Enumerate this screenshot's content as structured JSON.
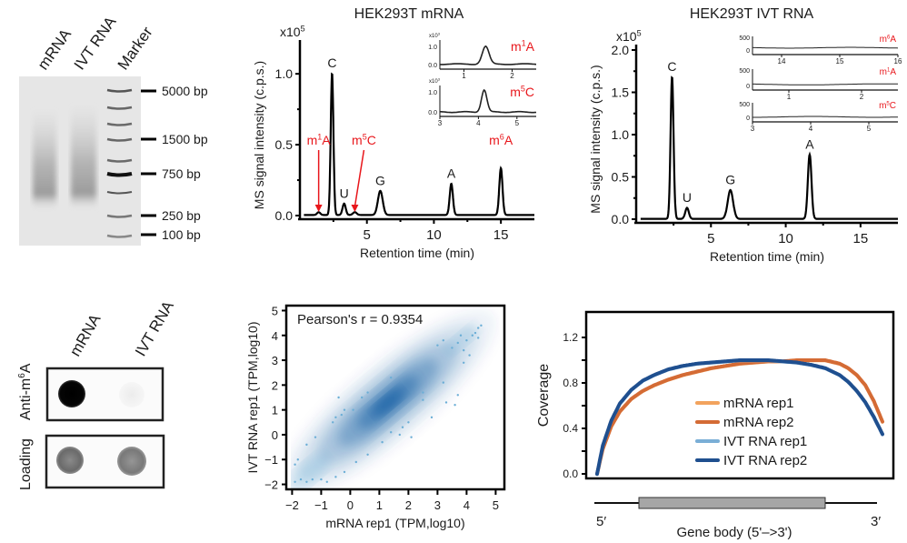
{
  "gel": {
    "lanes": [
      "mRNA",
      "IVT RNA",
      "Marker"
    ],
    "markers": [
      "5000 bp",
      "1500 bp",
      "750 bp",
      "250 bp",
      "100 bp"
    ]
  },
  "dot_blot": {
    "columns": [
      "mRNA",
      "IVT RNA"
    ],
    "rows": [
      {
        "label_prefix": "Anti-m",
        "label_sup": "6",
        "label_suffix": "A",
        "intensities": [
          1.0,
          0.05
        ]
      },
      {
        "label": "Loading",
        "intensities": [
          0.7,
          0.65
        ]
      }
    ]
  },
  "chart_data": [
    {
      "type": "line",
      "title": "HEK293T mRNA",
      "xlabel": "Retention time (min)",
      "ylabel": "MS signal intensity (c.p.s.)",
      "y_multiplier": "x10",
      "y_multiplier_exp": "5",
      "xlim": [
        0,
        17.5
      ],
      "ylim": [
        0,
        1.2
      ],
      "xticks": [
        5,
        10,
        15
      ],
      "yticks": [
        "0.0",
        "0.5",
        "1.0"
      ],
      "yticks_values": [
        0,
        0.5,
        1.0
      ],
      "peaks": [
        {
          "label": "m",
          "sup": "1",
          "suffix": "A",
          "modified": true,
          "rt": 1.4,
          "height": 0.02,
          "width": 0.12
        },
        {
          "label": "C",
          "modified": false,
          "rt": 2.4,
          "height": 1.0,
          "width": 0.1
        },
        {
          "label": "U",
          "modified": false,
          "rt": 3.3,
          "height": 0.08,
          "width": 0.12
        },
        {
          "label": "m",
          "sup": "5",
          "suffix": "C",
          "modified": true,
          "rt": 4.1,
          "height": 0.02,
          "width": 0.14
        },
        {
          "label": "G",
          "modified": false,
          "rt": 6.0,
          "height": 0.17,
          "width": 0.18
        },
        {
          "label": "A",
          "modified": false,
          "rt": 11.3,
          "height": 0.22,
          "width": 0.12
        },
        {
          "label": "m",
          "sup": "6",
          "suffix": "A",
          "modified": true,
          "rt": 15.0,
          "height": 0.33,
          "width": 0.12
        }
      ],
      "insets": [
        {
          "name": "m1A",
          "label": "m",
          "sup": "1",
          "suffix": "A",
          "xlim": [
            0.5,
            2.5
          ],
          "xticks": [
            1,
            2
          ],
          "yticks": [
            "0.0",
            "1.0"
          ],
          "y_multiplier": "x10",
          "y_multiplier_exp": "3",
          "peak_rt": 1.45,
          "peak_height": 1.3,
          "baseline": 0.1
        },
        {
          "name": "m5C",
          "label": "m",
          "sup": "5",
          "suffix": "C",
          "xlim": [
            3,
            5.5
          ],
          "xticks": [
            3,
            4,
            5
          ],
          "yticks": [
            "0.0",
            "1.0"
          ],
          "y_multiplier": "x10",
          "y_multiplier_exp": "3",
          "peak_rt": 4.15,
          "peak_height": 1.5,
          "baseline": 0.05
        }
      ]
    },
    {
      "type": "line",
      "title": "HEK293T IVT RNA",
      "xlabel": "Retention time (min)",
      "ylabel": "MS signal intensity (c.p.s.)",
      "y_multiplier": "x10",
      "y_multiplier_exp": "5",
      "xlim": [
        0,
        17.5
      ],
      "ylim": [
        0,
        2.0
      ],
      "xticks": [
        5,
        10,
        15
      ],
      "yticks": [
        "0.0",
        "0.5",
        "1.0",
        "1.5",
        "2.0"
      ],
      "yticks_values": [
        0,
        0.5,
        1.0,
        1.5,
        2.0
      ],
      "peaks": [
        {
          "label": "C",
          "modified": false,
          "rt": 2.4,
          "height": 1.68,
          "width": 0.1
        },
        {
          "label": "U",
          "modified": false,
          "rt": 3.4,
          "height": 0.13,
          "width": 0.12
        },
        {
          "label": "G",
          "modified": false,
          "rt": 6.3,
          "height": 0.34,
          "width": 0.18
        },
        {
          "label": "A",
          "modified": false,
          "rt": 11.6,
          "height": 0.76,
          "width": 0.12
        }
      ],
      "insets": [
        {
          "name": "m6A",
          "label": "m",
          "sup": "6",
          "suffix": "A",
          "xlim": [
            13.5,
            16
          ],
          "xticks": [
            14,
            15,
            16
          ],
          "yticks": [
            "0",
            "500"
          ],
          "baseline": 150
        },
        {
          "name": "m1A",
          "label": "m",
          "sup": "1",
          "suffix": "A",
          "xlim": [
            0.5,
            2.5
          ],
          "xticks": [
            1,
            2
          ],
          "yticks": [
            "0",
            "500"
          ],
          "baseline": 80
        },
        {
          "name": "m5C",
          "label": "m",
          "sup": "5",
          "suffix": "C",
          "xlim": [
            3,
            5.5
          ],
          "xticks": [
            3,
            4,
            5
          ],
          "yticks": [
            "0",
            "500"
          ],
          "baseline": 60
        }
      ]
    },
    {
      "type": "scatter",
      "annotation": "Pearson's r  = 0.9354",
      "xlabel": "mRNA rep1 (TPM,log10)",
      "ylabel": "IVT RNA rep1 (TPM,log10)",
      "xlim": [
        -2.2,
        5.3
      ],
      "ylim": [
        -2.2,
        5.2
      ],
      "xticks": [
        "−2",
        "−1",
        "0",
        "1",
        "2",
        "3",
        "4",
        "5"
      ],
      "xticks_values": [
        -2,
        -1,
        0,
        1,
        2,
        3,
        4,
        5
      ],
      "yticks": [
        "−2",
        "−1",
        "0",
        "1",
        "2",
        "3",
        "4",
        "5"
      ],
      "yticks_values": [
        -2,
        -1,
        0,
        1,
        2,
        3,
        4,
        5
      ],
      "density_center": [
        1.3,
        1.3
      ],
      "outliers": [
        [
          -1.9,
          -1.9
        ],
        [
          -1.7,
          -1.8
        ],
        [
          -1.5,
          -1.9
        ],
        [
          -1.3,
          -1.8
        ],
        [
          -1.0,
          -1.8
        ],
        [
          -0.8,
          -1.9
        ],
        [
          -1.9,
          -1.2
        ],
        [
          -1.8,
          -1.0
        ],
        [
          -1.5,
          -0.4
        ],
        [
          -1.2,
          -0.1
        ],
        [
          -0.5,
          0.7
        ],
        [
          -0.3,
          0.8
        ],
        [
          -0.2,
          1.0
        ],
        [
          -0.6,
          0.5
        ],
        [
          -0.4,
          1.5
        ],
        [
          0.1,
          1.0
        ],
        [
          0.4,
          1.5
        ],
        [
          0.6,
          1.7
        ],
        [
          1.4,
          2.3
        ],
        [
          2.5,
          1.7
        ],
        [
          2.5,
          1.4
        ],
        [
          3.2,
          2.1
        ],
        [
          3.3,
          1.3
        ],
        [
          3.6,
          1.2
        ],
        [
          3.7,
          1.6
        ],
        [
          2.8,
          0.7
        ],
        [
          2.0,
          0.5
        ],
        [
          1.8,
          0.3
        ],
        [
          1.4,
          0.1
        ],
        [
          1.1,
          -0.3
        ],
        [
          0.6,
          -0.8
        ],
        [
          0.2,
          -1.1
        ],
        [
          -0.2,
          -1.5
        ],
        [
          -0.5,
          -1.7
        ],
        [
          2.1,
          -0.1
        ],
        [
          1.7,
          0.0
        ],
        [
          3.0,
          3.6
        ],
        [
          3.2,
          3.8
        ],
        [
          3.5,
          3.5
        ],
        [
          3.7,
          3.7
        ],
        [
          3.9,
          3.4
        ],
        [
          4.0,
          3.8
        ],
        [
          4.1,
          3.2
        ],
        [
          3.9,
          2.9
        ],
        [
          4.2,
          4.0
        ],
        [
          4.3,
          4.1
        ],
        [
          4.4,
          4.3
        ],
        [
          4.5,
          4.4
        ],
        [
          4.4,
          3.9
        ],
        [
          3.8,
          4.0
        ]
      ]
    },
    {
      "type": "line",
      "xlabel": "Gene body (5'–>3')",
      "ylabel": "Coverage",
      "x_start_label": "5′",
      "x_end_label": "3′",
      "xlim": [
        0,
        100
      ],
      "ylim": [
        0,
        1.25
      ],
      "yticks": [
        "0.0",
        "0.4",
        "0.8",
        "1.2"
      ],
      "yticks_values": [
        0,
        0.4,
        0.8,
        1.2
      ],
      "x": [
        0,
        2,
        5,
        8,
        12,
        16,
        20,
        25,
        30,
        35,
        40,
        45,
        50,
        55,
        60,
        65,
        70,
        75,
        80,
        85,
        88,
        91,
        94,
        97,
        100
      ],
      "series": [
        {
          "name": "mRNA rep1",
          "color": "#f2a35e",
          "values": [
            0.0,
            0.22,
            0.42,
            0.55,
            0.66,
            0.73,
            0.78,
            0.83,
            0.87,
            0.9,
            0.93,
            0.95,
            0.97,
            0.98,
            0.99,
            0.99,
            1.0,
            1.0,
            1.0,
            0.97,
            0.93,
            0.87,
            0.78,
            0.64,
            0.46
          ]
        },
        {
          "name": "mRNA rep2",
          "color": "#d46b35",
          "values": [
            0.0,
            0.22,
            0.42,
            0.55,
            0.66,
            0.73,
            0.78,
            0.83,
            0.87,
            0.9,
            0.93,
            0.95,
            0.97,
            0.98,
            0.99,
            0.99,
            1.0,
            1.0,
            1.0,
            0.97,
            0.93,
            0.87,
            0.78,
            0.64,
            0.46
          ]
        },
        {
          "name": "IVT RNA rep1",
          "color": "#7aaed6",
          "values": [
            0.0,
            0.25,
            0.47,
            0.62,
            0.74,
            0.82,
            0.87,
            0.92,
            0.95,
            0.97,
            0.98,
            0.99,
            1.0,
            1.0,
            1.0,
            0.99,
            0.98,
            0.96,
            0.93,
            0.87,
            0.81,
            0.73,
            0.63,
            0.5,
            0.35
          ]
        },
        {
          "name": "IVT RNA rep2",
          "color": "#1f4f8f",
          "values": [
            0.0,
            0.25,
            0.47,
            0.62,
            0.74,
            0.82,
            0.87,
            0.92,
            0.95,
            0.97,
            0.98,
            0.99,
            1.0,
            1.0,
            1.0,
            0.99,
            0.98,
            0.96,
            0.93,
            0.87,
            0.81,
            0.73,
            0.63,
            0.5,
            0.35
          ]
        }
      ],
      "legend": "center-right"
    }
  ],
  "colors": {
    "modified_label": "#e8161b",
    "density": "#08519c"
  }
}
